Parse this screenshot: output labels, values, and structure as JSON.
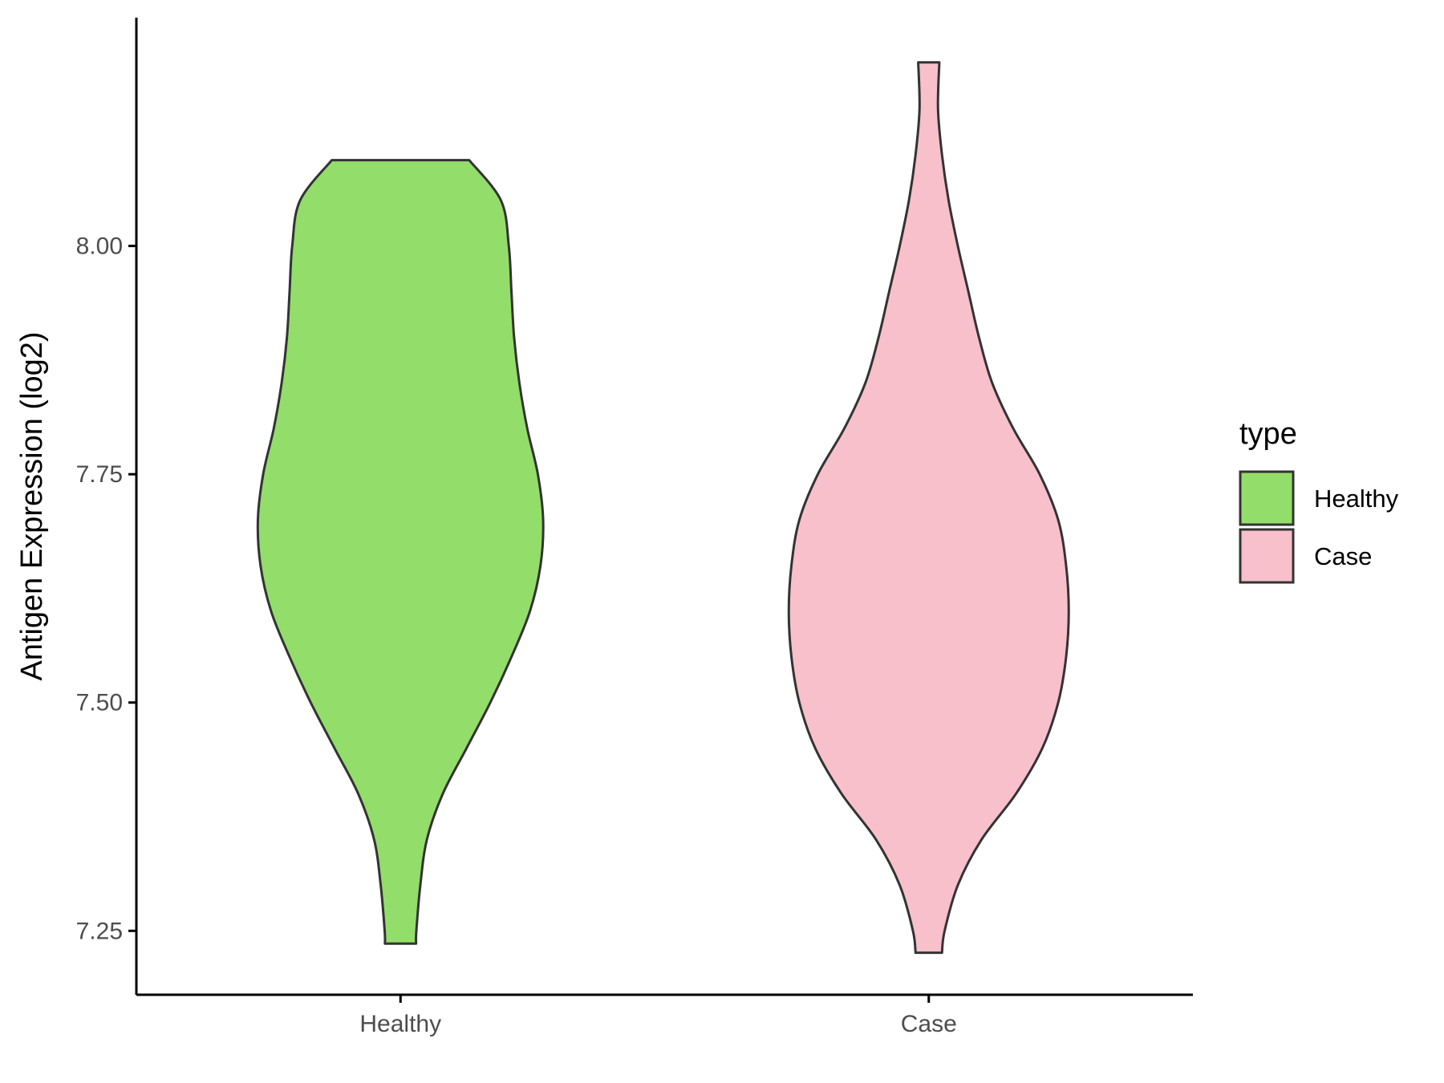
{
  "chart_data": {
    "type": "violin",
    "xlabel": "",
    "ylabel": "Antigen Expression (log2)",
    "categories": [
      "Healthy",
      "Case"
    ],
    "y_ticks": [
      "7.25",
      "7.50",
      "7.75",
      "8.00"
    ],
    "y_tick_values": [
      7.25,
      7.5,
      7.75,
      8.0
    ],
    "ylim": [
      7.18,
      8.25
    ],
    "grid": false,
    "legend": {
      "title": "type",
      "position": "right",
      "entries": [
        "Healthy",
        "Case"
      ]
    },
    "series": [
      {
        "name": "Healthy",
        "color": "#93dd6a",
        "y_min": 7.236,
        "y_max": 8.094,
        "density_profile": [
          [
            7.236,
            0.059
          ],
          [
            7.25,
            0.06
          ],
          [
            7.3,
            0.075
          ],
          [
            7.35,
            0.1
          ],
          [
            7.4,
            0.16
          ],
          [
            7.45,
            0.25
          ],
          [
            7.5,
            0.34
          ],
          [
            7.55,
            0.42
          ],
          [
            7.6,
            0.49
          ],
          [
            7.65,
            0.53
          ],
          [
            7.7,
            0.54
          ],
          [
            7.75,
            0.52
          ],
          [
            7.8,
            0.48
          ],
          [
            7.85,
            0.45
          ],
          [
            7.9,
            0.43
          ],
          [
            7.95,
            0.42
          ],
          [
            8.0,
            0.41
          ],
          [
            8.05,
            0.38
          ],
          [
            8.094,
            0.26
          ]
        ]
      },
      {
        "name": "Case",
        "color": "#f7c0cb",
        "y_min": 7.226,
        "y_max": 8.201,
        "density_profile": [
          [
            7.226,
            0.05
          ],
          [
            7.25,
            0.06
          ],
          [
            7.3,
            0.11
          ],
          [
            7.35,
            0.2
          ],
          [
            7.4,
            0.33
          ],
          [
            7.45,
            0.43
          ],
          [
            7.5,
            0.49
          ],
          [
            7.55,
            0.52
          ],
          [
            7.6,
            0.53
          ],
          [
            7.65,
            0.52
          ],
          [
            7.7,
            0.49
          ],
          [
            7.75,
            0.42
          ],
          [
            7.8,
            0.32
          ],
          [
            7.85,
            0.24
          ],
          [
            7.9,
            0.19
          ],
          [
            7.95,
            0.15
          ],
          [
            8.0,
            0.11
          ],
          [
            8.05,
            0.075
          ],
          [
            8.1,
            0.05
          ],
          [
            8.15,
            0.035
          ],
          [
            8.201,
            0.04
          ]
        ]
      }
    ]
  }
}
